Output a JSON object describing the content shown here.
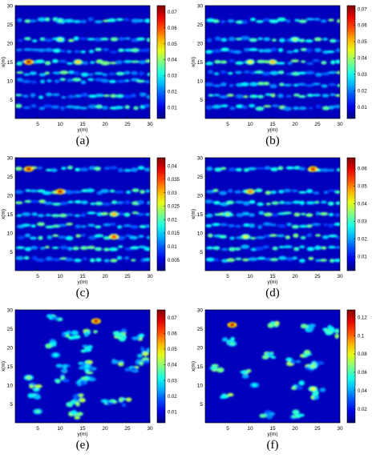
{
  "figure": {
    "panels": [
      {
        "id": "a",
        "label": "(a)",
        "xlabel": "y(m)",
        "ylabel": "x(m)",
        "xticks": [
          5,
          10,
          15,
          20,
          25,
          30
        ],
        "yticks": [
          5,
          10,
          15,
          20,
          25,
          30
        ],
        "colorbar": {
          "ticks": [
            "0.07",
            "0.06",
            "0.05",
            "0.04",
            "0.03",
            "0.02",
            "0.01"
          ],
          "values": [
            0.07,
            0.06,
            0.05,
            0.04,
            0.03,
            0.02,
            0.01
          ],
          "min": 0.003,
          "max": 0.074
        },
        "pattern": "grid-rows"
      },
      {
        "id": "b",
        "label": "(b)",
        "xlabel": "y(m)",
        "ylabel": "x(m)",
        "xticks": [
          5,
          10,
          15,
          20,
          25,
          30
        ],
        "yticks": [
          5,
          10,
          15,
          20,
          25,
          30
        ],
        "colorbar": {
          "ticks": [
            "0.07",
            "0.06",
            "0.05",
            "0.04",
            "0.03",
            "0.02",
            "0.01"
          ],
          "values": [
            0.07,
            0.06,
            0.05,
            0.04,
            0.03,
            0.02,
            0.01
          ],
          "min": 0.003,
          "max": 0.072
        },
        "pattern": "grid-rows"
      },
      {
        "id": "c",
        "label": "(c)",
        "xlabel": "y(m)",
        "ylabel": "x(m)",
        "xticks": [
          5,
          10,
          15,
          20,
          25,
          30
        ],
        "yticks": [
          5,
          10,
          15,
          20,
          25,
          30
        ],
        "colorbar": {
          "ticks": [
            "0.04",
            "0.035",
            "0.03",
            "0.025",
            "0.02",
            "0.015",
            "0.01",
            "0.005"
          ],
          "values": [
            0.04,
            0.035,
            0.03,
            0.025,
            0.02,
            0.015,
            0.01,
            0.005
          ],
          "min": 0.001,
          "max": 0.043
        },
        "pattern": "grid-rows"
      },
      {
        "id": "d",
        "label": "(d)",
        "xlabel": "y(m)",
        "ylabel": "x(m)",
        "xticks": [
          5,
          10,
          15,
          20,
          25,
          30
        ],
        "yticks": [
          5,
          10,
          15,
          20,
          25,
          30
        ],
        "colorbar": {
          "ticks": [
            "0.06",
            "0.05",
            "0.04",
            "0.03",
            "0.02",
            "0.01"
          ],
          "values": [
            0.06,
            0.05,
            0.04,
            0.03,
            0.02,
            0.01
          ],
          "min": 0.002,
          "max": 0.066
        },
        "pattern": "grid-rows"
      },
      {
        "id": "e",
        "label": "(e)",
        "xlabel": "y(m)",
        "ylabel": "x(m)",
        "xticks": [
          5,
          10,
          15,
          20,
          25,
          30
        ],
        "yticks": [
          5,
          10,
          15,
          20,
          25,
          30
        ],
        "colorbar": {
          "ticks": [
            "0.07",
            "0.06",
            "0.05",
            "0.04",
            "0.03",
            "0.02",
            "0.01"
          ],
          "values": [
            0.07,
            0.06,
            0.05,
            0.04,
            0.03,
            0.02,
            0.01
          ],
          "min": 0.003,
          "max": 0.075
        },
        "pattern": "scattered"
      },
      {
        "id": "f",
        "label": "(f)",
        "xlabel": "y(m)",
        "ylabel": "x(m)",
        "xticks": [
          5,
          10,
          15,
          20,
          25,
          30
        ],
        "yticks": [
          5,
          10,
          15,
          20,
          25,
          30
        ],
        "colorbar": {
          "ticks": [
            "0.12",
            "0.1",
            "0.08",
            "0.06",
            "0.04",
            "0.02"
          ],
          "values": [
            0.12,
            0.1,
            0.08,
            0.06,
            0.04,
            0.02
          ],
          "min": 0.005,
          "max": 0.128
        },
        "pattern": "sparse"
      }
    ]
  },
  "chart_data": [
    {
      "type": "heatmap",
      "panel": "(a)",
      "xlabel": "y(m)",
      "ylabel": "x(m)",
      "xlim": [
        0,
        30
      ],
      "ylim": [
        0,
        30
      ],
      "colormap": "jet",
      "clim": [
        0.003,
        0.074
      ],
      "rows_x": [
        3,
        6,
        10,
        12,
        15,
        18,
        21,
        26
      ],
      "hotspots": [
        {
          "x": 15,
          "y": 3,
          "v": 0.07
        },
        {
          "x": 15,
          "y": 14,
          "v": 0.05
        },
        {
          "x": 21,
          "y": 10,
          "v": 0.04
        },
        {
          "x": 26,
          "y": 10,
          "v": 0.035
        }
      ]
    },
    {
      "type": "heatmap",
      "panel": "(b)",
      "xlabel": "y(m)",
      "ylabel": "x(m)",
      "xlim": [
        0,
        30
      ],
      "ylim": [
        0,
        30
      ],
      "colormap": "jet",
      "clim": [
        0.003,
        0.072
      ],
      "rows_x": [
        3,
        6,
        9,
        12,
        15,
        18,
        21,
        26
      ],
      "hotspots": [
        {
          "x": 15,
          "y": 15,
          "v": 0.05
        },
        {
          "x": 15,
          "y": 10,
          "v": 0.045
        },
        {
          "x": 21,
          "y": 20,
          "v": 0.04
        }
      ]
    },
    {
      "type": "heatmap",
      "panel": "(c)",
      "xlabel": "y(m)",
      "ylabel": "x(m)",
      "xlim": [
        0,
        30
      ],
      "ylim": [
        0,
        30
      ],
      "colormap": "jet",
      "clim": [
        0.001,
        0.043
      ],
      "rows_x": [
        3,
        6,
        9,
        12,
        15,
        18,
        21,
        27
      ],
      "hotspots": [
        {
          "x": 27,
          "y": 3,
          "v": 0.04
        },
        {
          "x": 21,
          "y": 10,
          "v": 0.04
        },
        {
          "x": 9,
          "y": 22,
          "v": 0.035
        },
        {
          "x": 15,
          "y": 22,
          "v": 0.03
        }
      ]
    },
    {
      "type": "heatmap",
      "panel": "(d)",
      "xlabel": "y(m)",
      "ylabel": "x(m)",
      "xlim": [
        0,
        30
      ],
      "ylim": [
        0,
        30
      ],
      "colormap": "jet",
      "clim": [
        0.002,
        0.066
      ],
      "rows_x": [
        3,
        6,
        9,
        12,
        15,
        18,
        21,
        27
      ],
      "hotspots": [
        {
          "x": 27,
          "y": 24,
          "v": 0.06
        },
        {
          "x": 21,
          "y": 10,
          "v": 0.05
        },
        {
          "x": 9,
          "y": 9,
          "v": 0.04
        },
        {
          "x": 15,
          "y": 5,
          "v": 0.035
        }
      ]
    },
    {
      "type": "heatmap",
      "panel": "(e)",
      "xlabel": "y(m)",
      "ylabel": "x(m)",
      "xlim": [
        0,
        30
      ],
      "ylim": [
        0,
        30
      ],
      "colormap": "jet",
      "clim": [
        0.003,
        0.075
      ],
      "hotspots": [
        {
          "x": 27,
          "y": 18,
          "v": 0.07
        },
        {
          "x": 12,
          "y": 3,
          "v": 0.04
        },
        {
          "x": 3,
          "y": 5,
          "v": 0.035
        },
        {
          "x": 18,
          "y": 9,
          "v": 0.03
        },
        {
          "x": 15,
          "y": 16,
          "v": 0.03
        }
      ]
    },
    {
      "type": "heatmap",
      "panel": "(f)",
      "xlabel": "y(m)",
      "ylabel": "x(m)",
      "xlim": [
        0,
        30
      ],
      "ylim": [
        0,
        30
      ],
      "colormap": "jet",
      "clim": [
        0.005,
        0.128
      ],
      "hotspots": [
        {
          "x": 26,
          "y": 6,
          "v": 0.12
        },
        {
          "x": 9,
          "y": 24,
          "v": 0.08
        },
        {
          "x": 15,
          "y": 24,
          "v": 0.07
        },
        {
          "x": 21,
          "y": 6,
          "v": 0.06
        },
        {
          "x": 10,
          "y": 11,
          "v": 0.05
        }
      ]
    }
  ]
}
